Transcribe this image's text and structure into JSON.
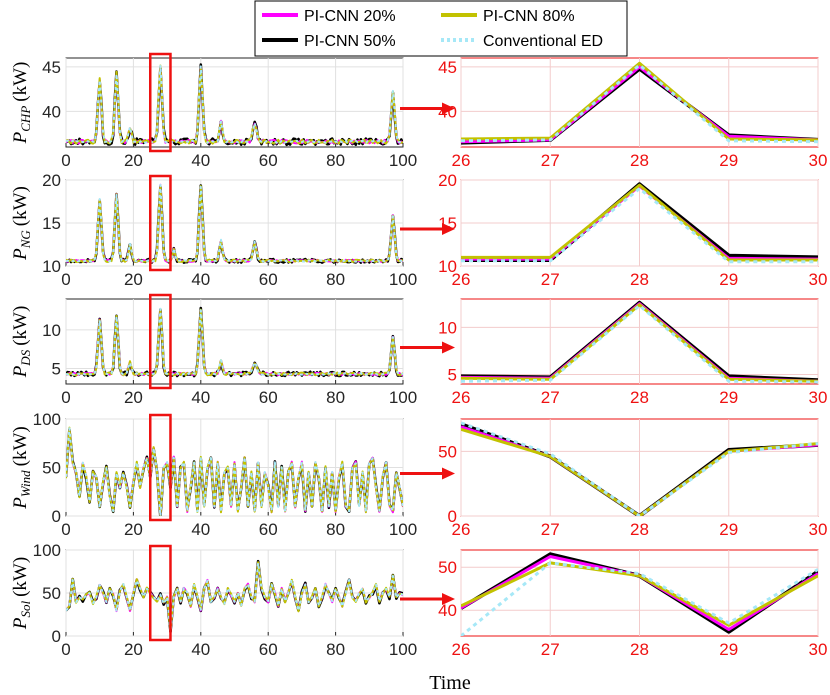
{
  "figure": {
    "xlabel": "Time",
    "colors": {
      "PI-CNN 20%": "#ff00ff",
      "PI-CNN 80%": "#c2c200",
      "PI-CNN 50%": "#000000",
      "Conventional ED": "#a6e8f7",
      "zoom_box": "#ee1111",
      "arrow": "#ee1111",
      "zoom_axes": "#ee1111",
      "main_axes": "#262626"
    }
  },
  "legend": {
    "items": [
      {
        "name": "PI-CNN 20%",
        "style": "solid"
      },
      {
        "name": "PI-CNN 80%",
        "style": "solid"
      },
      {
        "name": "PI-CNN 50%",
        "style": "solid"
      },
      {
        "name": "Conventional ED",
        "style": "dotted"
      }
    ]
  },
  "chart_data": [
    {
      "type": "line",
      "ylabel_main": "P",
      "ylabel_sub": "CHP",
      "ylabel_unit": "(kW)",
      "xlim": [
        0,
        100
      ],
      "ylim": [
        36,
        46
      ],
      "xticks": [
        "0",
        "20",
        "40",
        "60",
        "80",
        "100"
      ],
      "yticks": [
        "40",
        "45"
      ],
      "zoom_box": [
        25,
        31
      ],
      "base": 36.6,
      "peaks": [
        [
          10,
          43.6,
          0.7
        ],
        [
          15,
          44.3,
          0.7
        ],
        [
          19,
          38.2,
          0.6
        ],
        [
          28,
          45.2,
          0.7
        ],
        [
          40,
          45.0,
          0.7
        ],
        [
          46,
          38.8,
          0.6
        ],
        [
          56,
          38.6,
          0.8
        ],
        [
          97,
          42.2,
          0.7
        ]
      ],
      "noise": 0.5,
      "zoom": {
        "xlim": [
          26,
          30
        ],
        "ylim": [
          36,
          46
        ],
        "xticks": [
          "26",
          "27",
          "28",
          "29",
          "30"
        ],
        "yticks": [
          "40",
          "45"
        ],
        "x": [
          26,
          27,
          28,
          29,
          30
        ],
        "series": [
          {
            "name": "PI-CNN 20%",
            "values": [
              36.6,
              36.8,
              45.0,
              37.2,
              36.8
            ]
          },
          {
            "name": "PI-CNN 80%",
            "values": [
              36.9,
              37.0,
              45.4,
              36.9,
              36.8
            ]
          },
          {
            "name": "PI-CNN 50%",
            "values": [
              36.5,
              36.8,
              44.8,
              37.3,
              36.8
            ]
          },
          {
            "name": "Conventional ED",
            "values": [
              36.7,
              36.8,
              45.2,
              36.7,
              36.6
            ]
          }
        ]
      }
    },
    {
      "type": "line",
      "ylabel_main": "P",
      "ylabel_sub": "NG",
      "ylabel_unit": "(kW)",
      "xlim": [
        0,
        100
      ],
      "ylim": [
        10,
        20
      ],
      "xticks": [
        "0",
        "20",
        "40",
        "60",
        "80",
        "100"
      ],
      "yticks": [
        "10",
        "15",
        "20"
      ],
      "zoom_box": [
        25,
        31
      ],
      "base": 10.6,
      "peaks": [
        [
          10,
          17.8,
          0.7
        ],
        [
          15,
          18.3,
          0.7
        ],
        [
          19,
          12.5,
          0.6
        ],
        [
          28,
          19.4,
          0.7
        ],
        [
          32,
          12.0,
          0.5
        ],
        [
          40,
          19.2,
          0.7
        ],
        [
          46,
          13.0,
          0.6
        ],
        [
          56,
          12.8,
          0.7
        ],
        [
          97,
          15.8,
          0.7
        ]
      ],
      "noise": 0.3,
      "zoom": {
        "xlim": [
          26,
          30
        ],
        "ylim": [
          10,
          20
        ],
        "xticks": [
          "26",
          "27",
          "28",
          "29",
          "30"
        ],
        "yticks": [
          "10",
          "15",
          "20"
        ],
        "x": [
          26,
          27,
          28,
          29,
          30
        ],
        "series": [
          {
            "name": "PI-CNN 20%",
            "values": [
              10.8,
              10.8,
              19.3,
              10.9,
              10.8
            ]
          },
          {
            "name": "PI-CNN 80%",
            "values": [
              11.0,
              11.0,
              19.4,
              10.7,
              10.7
            ]
          },
          {
            "name": "PI-CNN 50%",
            "values": [
              10.7,
              10.7,
              19.5,
              11.2,
              11.0
            ]
          },
          {
            "name": "Conventional ED",
            "values": [
              10.6,
              10.6,
              19.0,
              10.5,
              10.5
            ]
          }
        ]
      }
    },
    {
      "type": "line",
      "ylabel_main": "P",
      "ylabel_sub": "DS",
      "ylabel_unit": "(kW)",
      "xlim": [
        0,
        100
      ],
      "ylim": [
        3,
        14
      ],
      "xticks": [
        "0",
        "20",
        "40",
        "60",
        "80",
        "100"
      ],
      "yticks": [
        "5",
        "10"
      ],
      "zoom_box": [
        25,
        31
      ],
      "base": 4.3,
      "peaks": [
        [
          10,
          11.2,
          0.7
        ],
        [
          15,
          11.8,
          0.7
        ],
        [
          19,
          5.8,
          0.6
        ],
        [
          28,
          12.8,
          0.7
        ],
        [
          40,
          12.6,
          0.7
        ],
        [
          46,
          6.0,
          0.6
        ],
        [
          56,
          5.8,
          0.8
        ],
        [
          97,
          9.0,
          0.7
        ]
      ],
      "noise": 0.4,
      "zoom": {
        "xlim": [
          26,
          30
        ],
        "ylim": [
          4,
          13
        ],
        "xticks": [
          "26",
          "27",
          "28",
          "29",
          "30"
        ],
        "yticks": [
          "5",
          "10"
        ],
        "x": [
          26,
          27,
          28,
          29,
          30
        ],
        "series": [
          {
            "name": "PI-CNN 20%",
            "values": [
              4.7,
              4.6,
              12.5,
              4.6,
              4.3
            ]
          },
          {
            "name": "PI-CNN 80%",
            "values": [
              4.6,
              4.5,
              12.4,
              4.5,
              4.3
            ]
          },
          {
            "name": "PI-CNN 50%",
            "values": [
              4.8,
              4.7,
              12.6,
              4.8,
              4.4
            ]
          },
          {
            "name": "Conventional ED",
            "values": [
              4.3,
              4.4,
              12.3,
              4.3,
              4.2
            ]
          }
        ]
      }
    },
    {
      "type": "line",
      "ylabel_main": "P",
      "ylabel_sub": "Wind",
      "ylabel_unit": "(kW)",
      "xlim": [
        0,
        100
      ],
      "ylim": [
        0,
        100
      ],
      "xticks": [
        "0",
        "20",
        "40",
        "60",
        "80",
        "100"
      ],
      "yticks": [
        "0",
        "50",
        "100"
      ],
      "zoom_box": [
        25,
        31
      ],
      "values": [
        40,
        90,
        55,
        45,
        20,
        55,
        40,
        15,
        45,
        40,
        10,
        35,
        50,
        20,
        5,
        45,
        30,
        45,
        30,
        10,
        35,
        55,
        30,
        50,
        60,
        40,
        70,
        45,
        0,
        50,
        55,
        30,
        60,
        10,
        50,
        55,
        5,
        30,
        55,
        5,
        60,
        10,
        50,
        60,
        10,
        55,
        5,
        45,
        50,
        10,
        55,
        5,
        30,
        60,
        10,
        45,
        5,
        55,
        10,
        45,
        30,
        5,
        55,
        10,
        50,
        5,
        45,
        55,
        10,
        40,
        55,
        5,
        45,
        10,
        55,
        40,
        5,
        50,
        10,
        45,
        5,
        40,
        55,
        10,
        5,
        50,
        55,
        10,
        45,
        5,
        55,
        60,
        30,
        5,
        40,
        55,
        10,
        5,
        45,
        30,
        10
      ],
      "zoom": {
        "xlim": [
          26,
          30
        ],
        "ylim": [
          0,
          75
        ],
        "xticks": [
          "26",
          "27",
          "28",
          "29",
          "30"
        ],
        "yticks": [
          "0",
          "50"
        ],
        "x": [
          26,
          27,
          28,
          29,
          30
        ],
        "series": [
          {
            "name": "PI-CNN 20%",
            "values": [
              69,
              46,
              0,
              50,
              55
            ]
          },
          {
            "name": "PI-CNN 80%",
            "values": [
              67,
              46,
              0,
              50,
              56
            ]
          },
          {
            "name": "PI-CNN 50%",
            "values": [
              71,
              46,
              0,
              51,
              55
            ]
          },
          {
            "name": "Conventional ED",
            "values": [
              72,
              48,
              0,
              49,
              56
            ]
          }
        ]
      }
    },
    {
      "type": "line",
      "ylabel_main": "P",
      "ylabel_sub": "Sol",
      "ylabel_unit": "(kW)",
      "xlim": [
        0,
        100
      ],
      "ylim": [
        0,
        100
      ],
      "xticks": [
        "0",
        "20",
        "40",
        "60",
        "80",
        "100"
      ],
      "yticks": [
        "0",
        "50",
        "100"
      ],
      "zoom_box": [
        25,
        31
      ],
      "values": [
        30,
        35,
        65,
        40,
        45,
        42,
        48,
        50,
        38,
        45,
        60,
        50,
        40,
        55,
        48,
        30,
        52,
        60,
        45,
        30,
        50,
        65,
        55,
        45,
        55,
        50,
        45,
        40,
        48,
        38,
        45,
        5,
        45,
        55,
        40,
        55,
        50,
        35,
        60,
        45,
        30,
        55,
        65,
        40,
        45,
        55,
        45,
        38,
        55,
        48,
        40,
        50,
        35,
        55,
        60,
        45,
        40,
        85,
        55,
        45,
        40,
        60,
        50,
        35,
        55,
        40,
        50,
        65,
        45,
        30,
        50,
        60,
        40,
        45,
        55,
        35,
        45,
        60,
        50,
        40,
        55,
        45,
        35,
        50,
        65,
        45,
        40,
        50,
        55,
        40,
        45,
        50,
        60,
        40,
        50,
        55,
        45,
        70,
        45,
        50,
        48
      ],
      "zoom": {
        "xlim": [
          26,
          30
        ],
        "ylim": [
          34,
          54
        ],
        "xticks": [
          "26",
          "27",
          "28",
          "29",
          "30"
        ],
        "yticks": [
          "40",
          "50"
        ],
        "x": [
          26,
          27,
          28,
          29,
          30
        ],
        "series": [
          {
            "name": "PI-CNN 20%",
            "values": [
              40.5,
              52.5,
              48.0,
              35.5,
              48.5
            ]
          },
          {
            "name": "PI-CNN 80%",
            "values": [
              41.0,
              51.0,
              48.0,
              36.5,
              48.0
            ]
          },
          {
            "name": "PI-CNN 50%",
            "values": [
              40.5,
              53.0,
              48.0,
              35.0,
              49.0
            ]
          },
          {
            "name": "Conventional ED",
            "values": [
              34.0,
              51.0,
              48.5,
              37.0,
              49.5
            ]
          }
        ]
      }
    }
  ]
}
